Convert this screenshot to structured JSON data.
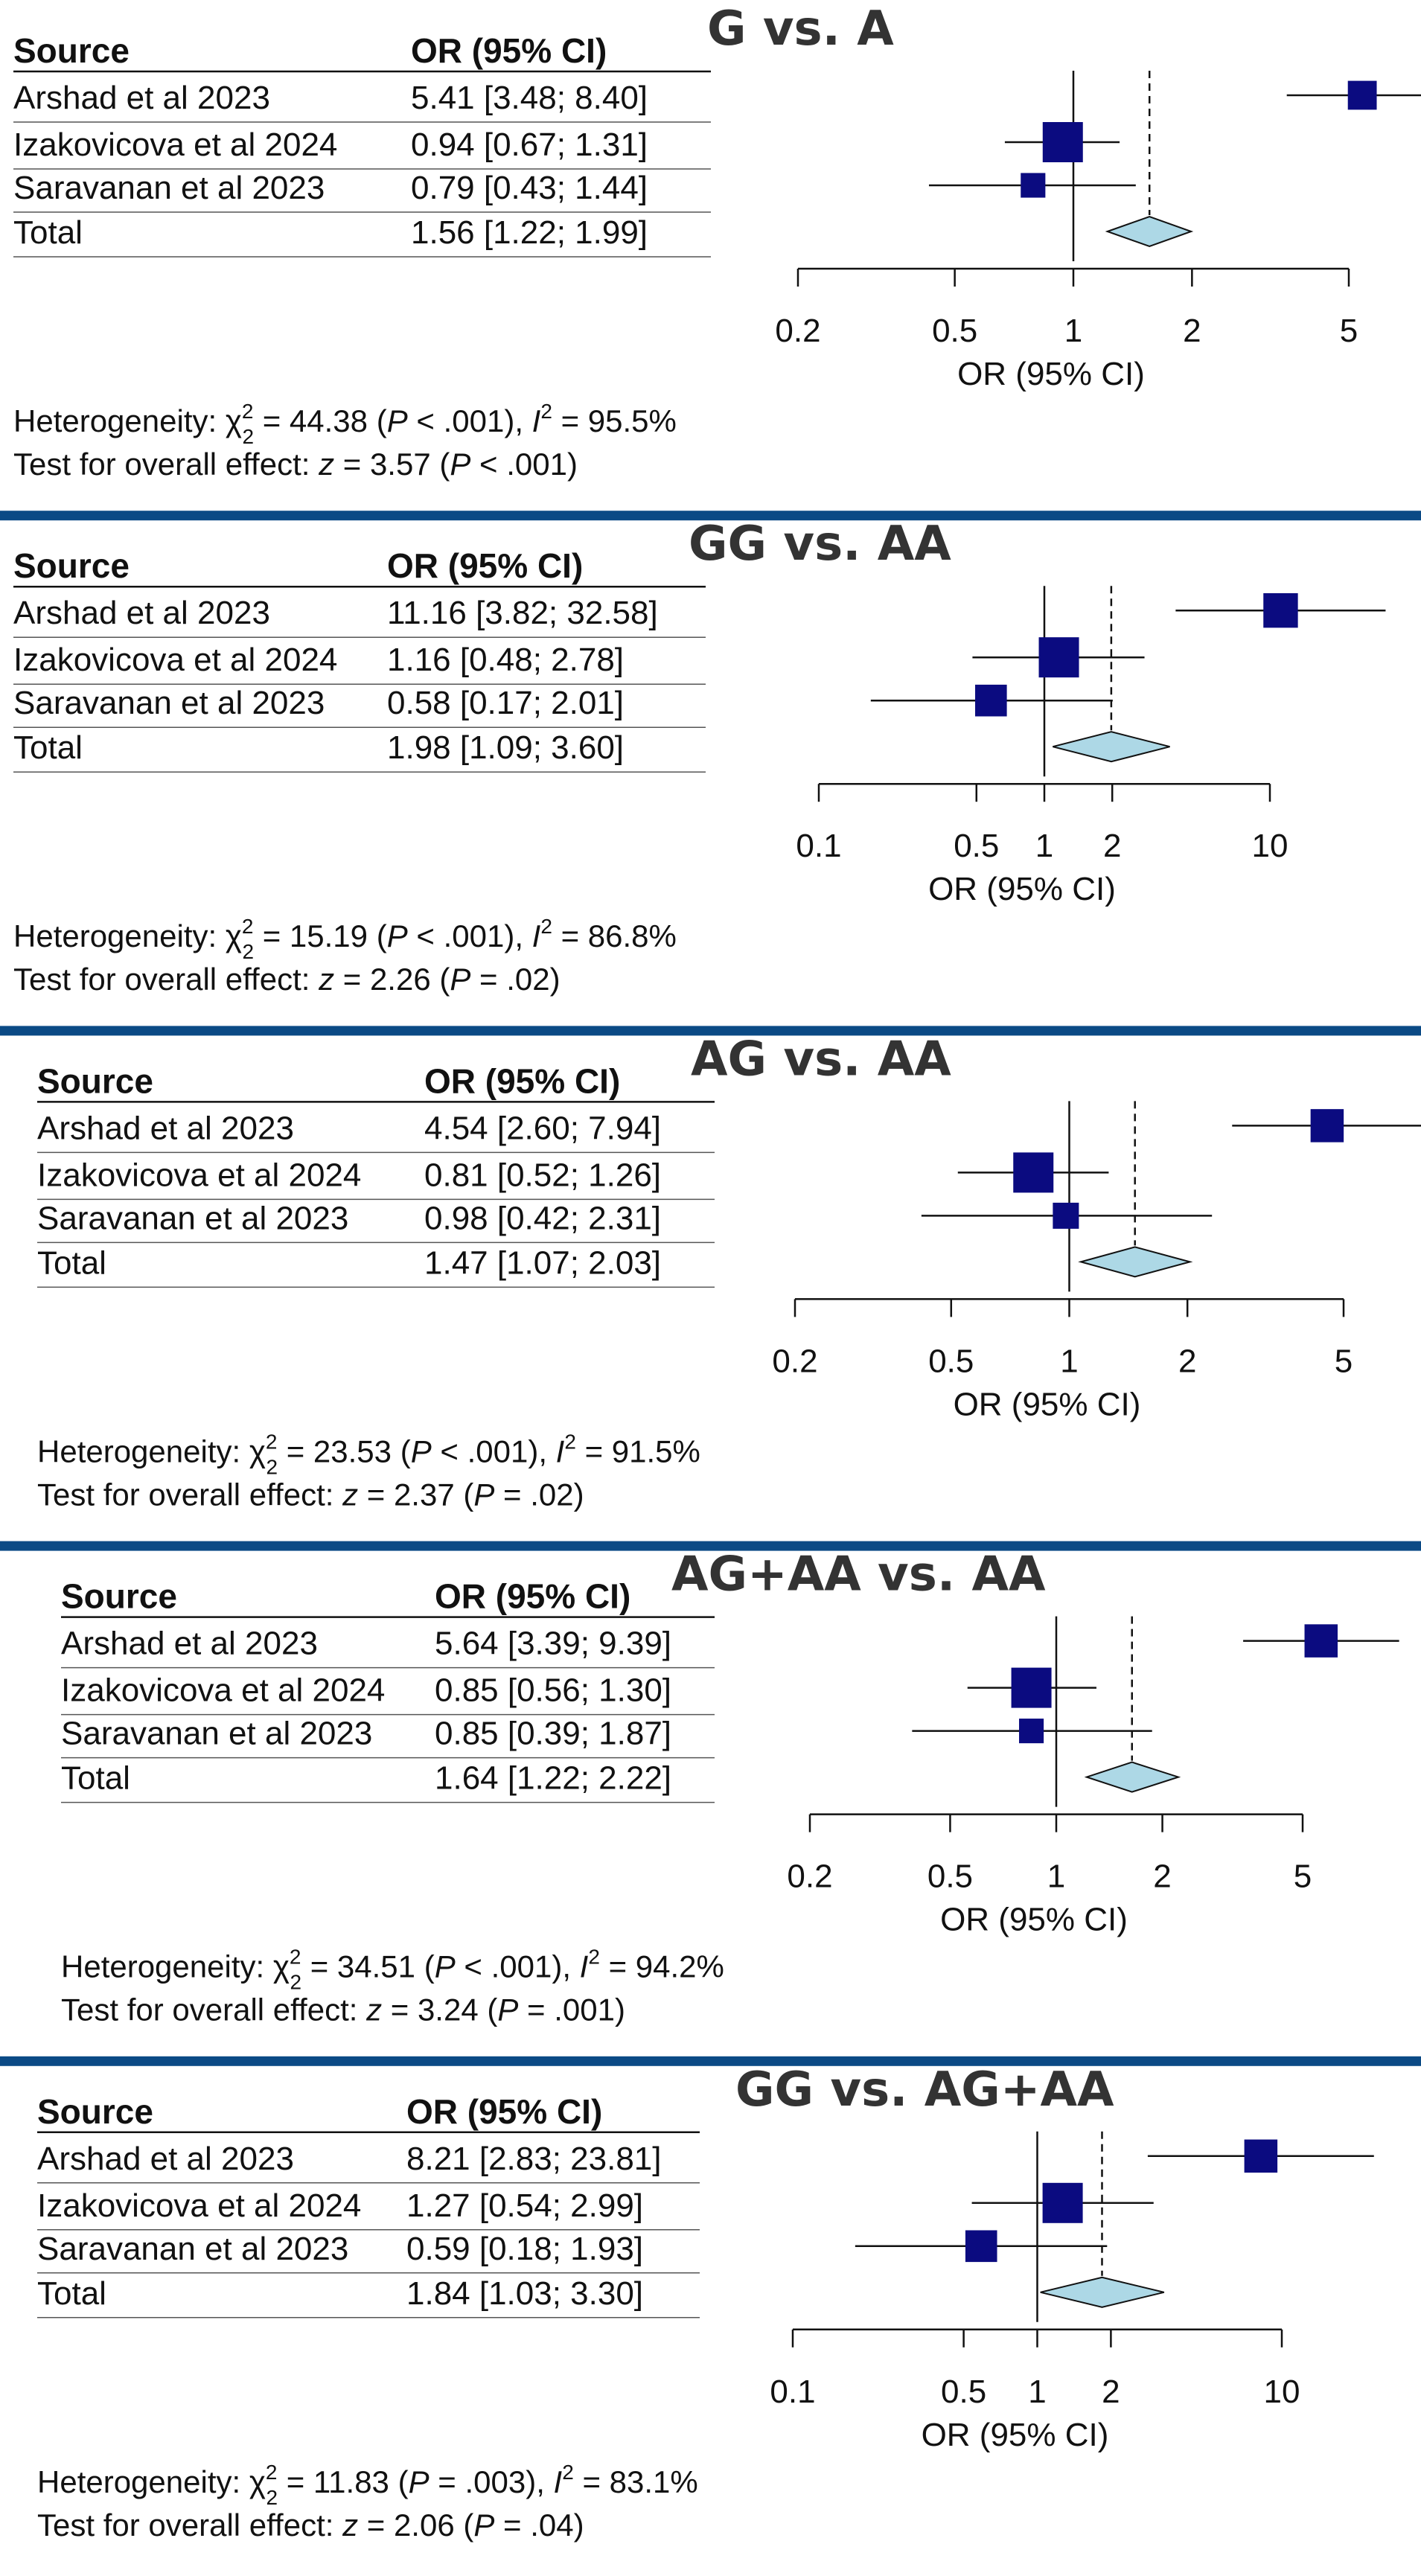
{
  "separator_color": "#0b4a85",
  "square_color": "#0b0b80",
  "diamond_color": "#add8e6",
  "xlabel": "OR (95% CI)",
  "table_headers": {
    "source": "Source",
    "or_ci": "OR (95% CI)"
  },
  "chart_data": [
    {
      "type": "forest",
      "title": "G vs. A",
      "scale": "log",
      "x_ticks": [
        0.2,
        0.5,
        1,
        2,
        5
      ],
      "x_tick_labels": [
        "0.2",
        "0.5",
        "1",
        "2",
        "5"
      ],
      "studies": [
        {
          "source": "Arshad et al 2023",
          "or": 5.41,
          "lo": 3.48,
          "hi": 8.4,
          "ci_text": "5.41 [3.48; 8.40]",
          "weight": 0.6
        },
        {
          "source": "Izakovicova et al 2024",
          "or": 0.94,
          "lo": 0.67,
          "hi": 1.31,
          "ci_text": "0.94 [0.67; 1.31]",
          "weight": 1.0
        },
        {
          "source": "Saravanan et al 2023",
          "or": 0.79,
          "lo": 0.43,
          "hi": 1.44,
          "ci_text": "0.79 [0.43; 1.44]",
          "weight": 0.45
        }
      ],
      "total": {
        "source": "Total",
        "or": 1.56,
        "lo": 1.22,
        "hi": 1.99,
        "ci_text": "1.56 [1.22; 1.99]"
      },
      "heterogeneity": {
        "chi2": "44.38",
        "df": "2",
        "p": "< .001",
        "i2": "95.5%"
      },
      "overall_effect": {
        "z": "3.57",
        "p": "< .001"
      }
    },
    {
      "type": "forest",
      "title": "GG vs. AA",
      "scale": "log",
      "x_ticks": [
        0.1,
        0.5,
        1,
        2,
        10
      ],
      "x_tick_labels": [
        "0.1",
        "0.5",
        "1",
        "2",
        "10"
      ],
      "studies": [
        {
          "source": "Arshad et al 2023",
          "or": 11.16,
          "lo": 3.82,
          "hi": 32.58,
          "ci_text": "11.16 [3.82; 32.58]",
          "weight": 0.8
        },
        {
          "source": "Izakovicova et al 2024",
          "or": 1.16,
          "lo": 0.48,
          "hi": 2.78,
          "ci_text": "1.16 [0.48;  2.78]",
          "weight": 1.0
        },
        {
          "source": "Saravanan et al 2023",
          "or": 0.58,
          "lo": 0.17,
          "hi": 2.01,
          "ci_text": "0.58 [0.17;  2.01]",
          "weight": 0.7
        }
      ],
      "total": {
        "source": "Total",
        "or": 1.98,
        "lo": 1.09,
        "hi": 3.6,
        "ci_text": "1.98 [1.09;  3.60]"
      },
      "heterogeneity": {
        "chi2": "15.19",
        "df": "2",
        "p": "< .001",
        "i2": "86.8%"
      },
      "overall_effect": {
        "z": "2.26",
        "p": "= .02"
      }
    },
    {
      "type": "forest",
      "title": "AG vs. AA",
      "scale": "log",
      "x_ticks": [
        0.2,
        0.5,
        1,
        2,
        5
      ],
      "x_tick_labels": [
        "0.2",
        "0.5",
        "1",
        "2",
        "5"
      ],
      "studies": [
        {
          "source": "Arshad et al 2023",
          "or": 4.54,
          "lo": 2.6,
          "hi": 7.94,
          "ci_text": "4.54 [2.60; 7.94]",
          "weight": 0.75
        },
        {
          "source": "Izakovicova et al 2024",
          "or": 0.81,
          "lo": 0.52,
          "hi": 1.26,
          "ci_text": "0.81 [0.52; 1.26]",
          "weight": 1.0
        },
        {
          "source": "Saravanan et al 2023",
          "or": 0.98,
          "lo": 0.42,
          "hi": 2.31,
          "ci_text": "0.98 [0.42; 2.31]",
          "weight": 0.5
        }
      ],
      "total": {
        "source": "Total",
        "or": 1.47,
        "lo": 1.07,
        "hi": 2.03,
        "ci_text": "1.47 [1.07; 2.03]"
      },
      "heterogeneity": {
        "chi2": "23.53",
        "df": "2",
        "p": "< .001",
        "i2": "91.5%"
      },
      "overall_effect": {
        "z": "2.37",
        "p": "= .02"
      }
    },
    {
      "type": "forest",
      "title": "AG+AA vs. AA",
      "scale": "log",
      "x_ticks": [
        0.2,
        0.5,
        1,
        2,
        5
      ],
      "x_tick_labels": [
        "0.2",
        "0.5",
        "1",
        "2",
        "5"
      ],
      "studies": [
        {
          "source": "Arshad et al 2023",
          "or": 5.64,
          "lo": 3.39,
          "hi": 9.39,
          "ci_text": "5.64 [3.39; 9.39]",
          "weight": 0.75
        },
        {
          "source": "Izakovicova et al 2024",
          "or": 0.85,
          "lo": 0.56,
          "hi": 1.3,
          "ci_text": "0.85 [0.56; 1.30]",
          "weight": 1.0
        },
        {
          "source": "Saravanan et al 2023",
          "or": 0.85,
          "lo": 0.39,
          "hi": 1.87,
          "ci_text": "0.85 [0.39; 1.87]",
          "weight": 0.45
        }
      ],
      "total": {
        "source": "Total",
        "or": 1.64,
        "lo": 1.22,
        "hi": 2.22,
        "ci_text": "1.64 [1.22; 2.22]"
      },
      "heterogeneity": {
        "chi2": "34.51",
        "df": "2",
        "p": "< .001",
        "i2": "94.2%"
      },
      "overall_effect": {
        "z": "3.24",
        "p": "= .001"
      }
    },
    {
      "type": "forest",
      "title": "GG vs. AG+AA",
      "scale": "log",
      "x_ticks": [
        0.1,
        0.5,
        1,
        2,
        10
      ],
      "x_tick_labels": [
        "0.1",
        "0.5",
        "1",
        "2",
        "10"
      ],
      "studies": [
        {
          "source": "Arshad et al 2023",
          "or": 8.21,
          "lo": 2.83,
          "hi": 23.81,
          "ci_text": "8.21 [2.83; 23.81]",
          "weight": 0.75
        },
        {
          "source": "Izakovicova et al 2024",
          "or": 1.27,
          "lo": 0.54,
          "hi": 2.99,
          "ci_text": "1.27 [0.54;  2.99]",
          "weight": 1.0
        },
        {
          "source": "Saravanan et al 2023",
          "or": 0.59,
          "lo": 0.18,
          "hi": 1.93,
          "ci_text": "0.59 [0.18;  1.93]",
          "weight": 0.7
        }
      ],
      "total": {
        "source": "Total",
        "or": 1.84,
        "lo": 1.03,
        "hi": 3.3,
        "ci_text": "1.84 [1.03;  3.30]"
      },
      "heterogeneity": {
        "chi2": "11.83",
        "df": "2",
        "p": "= .003",
        "i2": "83.1%"
      },
      "overall_effect": {
        "z": "2.06",
        "p": "= .04"
      }
    }
  ]
}
